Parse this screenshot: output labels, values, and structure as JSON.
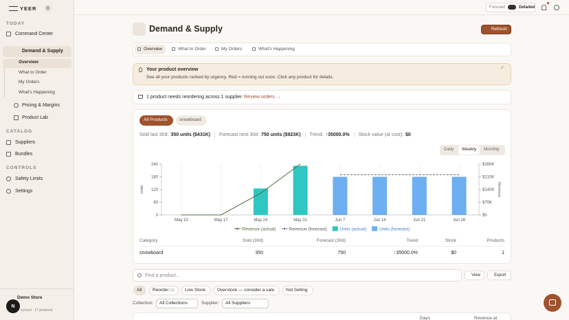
{
  "sidebar": {
    "logo": "YEER",
    "badge": "0",
    "today": "TODAY",
    "command_center": "Command Center",
    "demand_supply": "Demand & Supply",
    "sub": [
      "Overview",
      "What to Order",
      "My Orders",
      "What's Happening"
    ],
    "pricing": "Pricing & Margins",
    "product_lab": "Product Lab",
    "catalog": "CATALOG",
    "catalog_items": [
      "Suppliers",
      "Bundles"
    ],
    "controls": "CONTROLS",
    "control_items": [
      "Safety Limits",
      "Settings"
    ],
    "store": "Demo Store",
    "store_status": "synced · 17 products",
    "avatar": "N"
  },
  "topbar": {
    "focused": "Focused",
    "detailed": "Detailed"
  },
  "header": {
    "title": "Demand & Supply",
    "refresh": "Refresh"
  },
  "tabs": [
    "Overview",
    "What to Order",
    "My Orders",
    "What's Happening"
  ],
  "banner": {
    "title": "Your product overview",
    "text": "See all your products ranked by urgency. Red = running out soon. Click any product for details."
  },
  "reorder": {
    "text": "1 product needs reordering across 1 supplier.",
    "link": "Review orders →"
  },
  "product_filters": [
    "All Products",
    "snowboard"
  ],
  "stats": [
    {
      "label": "Sold last 30d:",
      "value": "350 units ($431K)"
    },
    {
      "label": "Forecast next 30d:",
      "value": "750 units ($923K)"
    },
    {
      "label": "Trend:",
      "value": "↑35000.0%"
    },
    {
      "label": "Stock value (at cost):",
      "value": "$0"
    }
  ],
  "periods": [
    "Daily",
    "Weekly",
    "Monthly"
  ],
  "chart_data": {
    "type": "bar",
    "categories": [
      "May 10",
      "May 17",
      "May 24",
      "May 31",
      "Jun 7",
      "Jun 14",
      "Jun 21",
      "Jun 28"
    ],
    "y_label": "Units",
    "y2_label": "Revenue",
    "ylim": [
      0,
      240
    ],
    "yticks": [
      0,
      60,
      120,
      180,
      240
    ],
    "y2lim": [
      0,
      280000
    ],
    "y2ticks": [
      {
        "value": 0,
        "label": "$0"
      },
      {
        "value": 70000,
        "label": "$70K"
      },
      {
        "value": 140000,
        "label": "$140K"
      },
      {
        "value": 210000,
        "label": "$210K"
      },
      {
        "value": 280000,
        "label": "$280K"
      }
    ],
    "grid": true,
    "series": [
      {
        "name": "Revenue (actual)",
        "type": "line",
        "axis": "y2",
        "color": "#4f6b3c",
        "values": [
          0,
          0,
          120000,
          280000,
          null,
          null,
          null,
          null
        ]
      },
      {
        "name": "Revenue (forecast)",
        "type": "line",
        "dashed": true,
        "axis": "y2",
        "color": "#555555",
        "values": [
          null,
          null,
          null,
          null,
          221000,
          221000,
          221000,
          221000
        ]
      },
      {
        "name": "Units (actual)",
        "type": "bar",
        "color": "#2ec7c1",
        "values": [
          0,
          0,
          125,
          232,
          null,
          null,
          null,
          null
        ]
      },
      {
        "name": "Units (forecast)",
        "type": "bar",
        "color": "#6eaef2",
        "values": [
          null,
          null,
          null,
          null,
          180,
          180,
          180,
          180
        ]
      }
    ]
  },
  "summary_table": {
    "headers": [
      "Category",
      "Sold (30d)",
      "Forecast (30d)",
      "Trend",
      "Stock",
      "Products"
    ],
    "rows": [
      [
        "snowboard",
        "350",
        "750",
        "↑35000.0%",
        "$0",
        "1"
      ]
    ]
  },
  "search": {
    "placeholder": "Find a product...",
    "view": "View",
    "export": "Export"
  },
  "chips": [
    {
      "label": "All"
    },
    {
      "label": "Reorder",
      "count": "(1)"
    },
    {
      "label": "Low Stock"
    },
    {
      "label": "Overstock — consider a sale"
    },
    {
      "label": "Not Selling"
    }
  ],
  "selectors": {
    "collection_label": "Collection:",
    "collection": "All Collections",
    "supplier_label": "Supplier:",
    "supplier": "All Suppliers"
  },
  "product_table_headers": [
    "Days",
    "Revenue at"
  ]
}
